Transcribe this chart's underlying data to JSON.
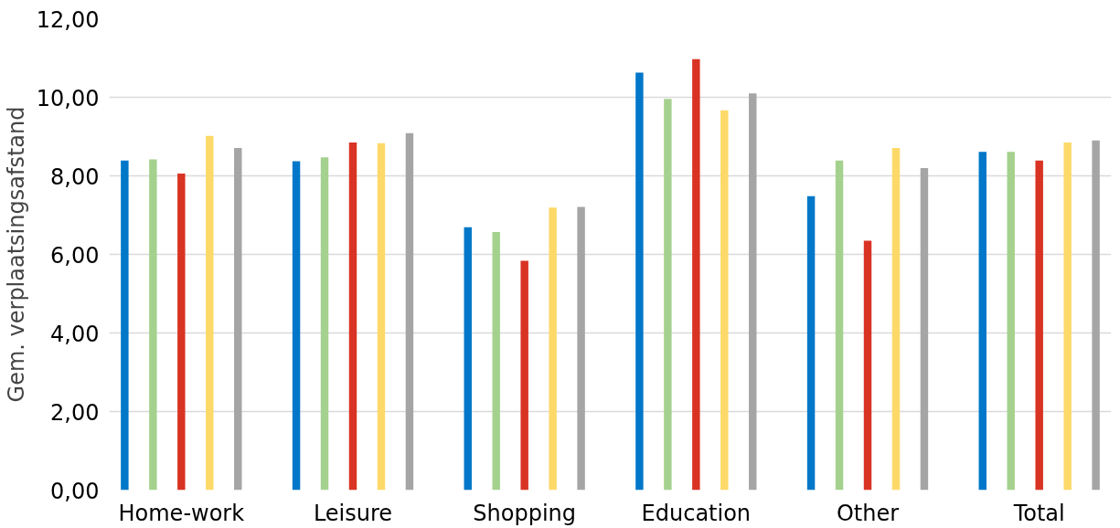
{
  "chart_data": {
    "type": "bar",
    "ylabel": "Gem. verplaatsingsafstand",
    "categories": [
      "Home-work",
      "Leisure",
      "Shopping",
      "Education",
      "Other",
      "Total"
    ],
    "series": [
      {
        "color": "#0077c8",
        "values": [
          8.39,
          8.37,
          6.69,
          10.63,
          7.48,
          8.61
        ]
      },
      {
        "color": "#a5d18e",
        "values": [
          8.42,
          8.47,
          6.57,
          9.96,
          8.39,
          8.61
        ]
      },
      {
        "color": "#d93324",
        "values": [
          8.06,
          8.85,
          5.84,
          10.97,
          6.35,
          8.39
        ]
      },
      {
        "color": "#fdd969",
        "values": [
          9.02,
          8.83,
          7.19,
          9.67,
          8.71,
          8.85
        ]
      },
      {
        "color": "#a5a5a5",
        "values": [
          8.71,
          9.09,
          7.21,
          10.1,
          8.2,
          8.9
        ]
      }
    ],
    "ylim": [
      0,
      12
    ],
    "yticks": [
      {
        "value": 0,
        "label": "0,00"
      },
      {
        "value": 2,
        "label": "2,00"
      },
      {
        "value": 4,
        "label": "4,00"
      },
      {
        "value": 6,
        "label": "6,00"
      },
      {
        "value": 8,
        "label": "8,00"
      },
      {
        "value": 10,
        "label": "10,00"
      },
      {
        "value": 12,
        "label": "12,00"
      }
    ],
    "grid": "y"
  }
}
